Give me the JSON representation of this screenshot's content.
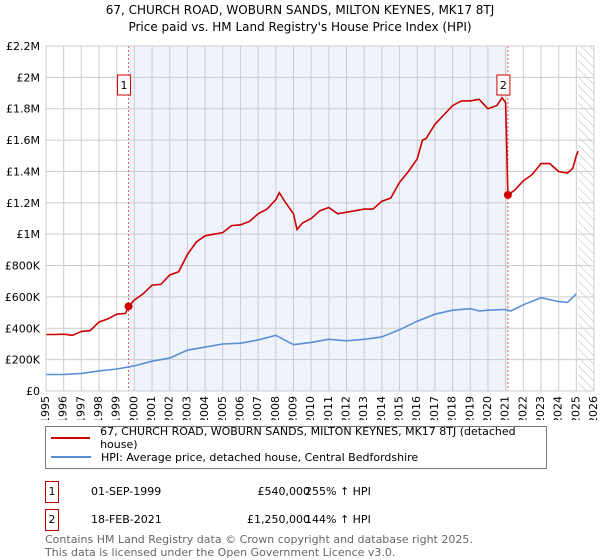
{
  "title": "67, CHURCH ROAD, WOBURN SANDS, MILTON KEYNES, MK17 8TJ",
  "subtitle": "Price paid vs. HM Land Registry's House Price Index (HPI)",
  "chart_data": {
    "type": "line",
    "ylim": [
      0,
      2200000
    ],
    "xlim": [
      1995,
      2026
    ],
    "yticks": [
      {
        "v": 0,
        "l": "£0"
      },
      {
        "v": 200000,
        "l": "£200K"
      },
      {
        "v": 400000,
        "l": "£400K"
      },
      {
        "v": 600000,
        "l": "£600K"
      },
      {
        "v": 800000,
        "l": "£800K"
      },
      {
        "v": 1000000,
        "l": "£1M"
      },
      {
        "v": 1200000,
        "l": "£1.2M"
      },
      {
        "v": 1400000,
        "l": "£1.4M"
      },
      {
        "v": 1600000,
        "l": "£1.6M"
      },
      {
        "v": 1800000,
        "l": "£1.8M"
      },
      {
        "v": 2000000,
        "l": "£2M"
      },
      {
        "v": 2200000,
        "l": "£2.2M"
      }
    ],
    "xticks": [
      "1995",
      "1996",
      "1997",
      "1998",
      "1999",
      "2000",
      "2001",
      "2002",
      "2003",
      "2004",
      "2005",
      "2006",
      "2007",
      "2008",
      "2009",
      "2010",
      "2011",
      "2012",
      "2013",
      "2014",
      "2015",
      "2016",
      "2017",
      "2018",
      "2019",
      "2020",
      "2021",
      "2022",
      "2023",
      "2024",
      "2025",
      "2026"
    ],
    "shaded_range": [
      1999.67,
      2021.13
    ],
    "hatched_from": 2025.1,
    "series": [
      {
        "name": "67, CHURCH ROAD, WOBURN SANDS, MILTON KEYNES, MK17 8TJ (detached house)",
        "color": "#cc0000",
        "x": [
          1995,
          1995.5,
          1996,
          1996.5,
          1997,
          1997.5,
          1998,
          1998.5,
          1999,
          1999.5,
          1999.67,
          2000,
          2000.5,
          2001,
          2001.5,
          2002,
          2002.5,
          2003,
          2003.5,
          2004,
          2004.5,
          2005,
          2005.5,
          2006,
          2006.5,
          2007,
          2007.5,
          2008,
          2008.2,
          2008.5,
          2009,
          2009.2,
          2009.5,
          2010,
          2010.5,
          2011,
          2011.5,
          2012,
          2012.5,
          2013,
          2013.5,
          2014,
          2014.5,
          2015,
          2015.5,
          2016,
          2016.3,
          2016.5,
          2017,
          2017.5,
          2018,
          2018.5,
          2019,
          2019.5,
          2020,
          2020.5,
          2020.8,
          2021,
          2021.13,
          2021.5,
          2022,
          2022.5,
          2023,
          2023.5,
          2024,
          2024.5,
          2024.8,
          2025,
          2025.1
        ],
        "y": [
          360000,
          360000,
          362000,
          355000,
          380000,
          385000,
          440000,
          460000,
          490000,
          495000,
          540000,
          580000,
          620000,
          675000,
          680000,
          740000,
          760000,
          870000,
          950000,
          990000,
          1000000,
          1010000,
          1055000,
          1060000,
          1080000,
          1130000,
          1160000,
          1220000,
          1265000,
          1210000,
          1130000,
          1030000,
          1070000,
          1100000,
          1150000,
          1170000,
          1130000,
          1140000,
          1150000,
          1160000,
          1160000,
          1210000,
          1230000,
          1330000,
          1400000,
          1480000,
          1600000,
          1610000,
          1700000,
          1760000,
          1820000,
          1850000,
          1850000,
          1860000,
          1800000,
          1820000,
          1870000,
          1840000,
          1250000,
          1280000,
          1340000,
          1380000,
          1450000,
          1450000,
          1400000,
          1390000,
          1420000,
          1500000,
          1530000
        ]
      },
      {
        "name": "HPI: Average price, detached house, Central Bedfordshire",
        "color": "#5b8fd4",
        "x": [
          1995,
          1996,
          1997,
          1998,
          1999,
          2000,
          2001,
          2002,
          2003,
          2004,
          2005,
          2006,
          2007,
          2008,
          2009,
          2010,
          2011,
          2012,
          2013,
          2014,
          2015,
          2016,
          2017,
          2018,
          2019,
          2019.5,
          2020,
          2021,
          2021.3,
          2022,
          2023,
          2024,
          2024.5,
          2025
        ],
        "y": [
          105000,
          105000,
          112000,
          128000,
          140000,
          160000,
          190000,
          210000,
          260000,
          280000,
          300000,
          305000,
          325000,
          355000,
          295000,
          310000,
          330000,
          320000,
          330000,
          345000,
          390000,
          445000,
          490000,
          515000,
          525000,
          510000,
          515000,
          520000,
          510000,
          550000,
          595000,
          570000,
          565000,
          620000
        ]
      }
    ],
    "markers": [
      {
        "label": "1",
        "x": 1999.67,
        "y": 540000
      },
      {
        "label": "2",
        "x": 2021.13,
        "y": 1250000
      }
    ]
  },
  "transactions": [
    {
      "num": "1",
      "date": "01-SEP-1999",
      "price": "£540,000",
      "hpi": "255% ↑ HPI"
    },
    {
      "num": "2",
      "date": "18-FEB-2021",
      "price": "£1,250,000",
      "hpi": "144% ↑ HPI"
    }
  ],
  "footer": [
    "Contains HM Land Registry data © Crown copyright and database right 2025.",
    "This data is licensed under the Open Government Licence v3.0."
  ]
}
